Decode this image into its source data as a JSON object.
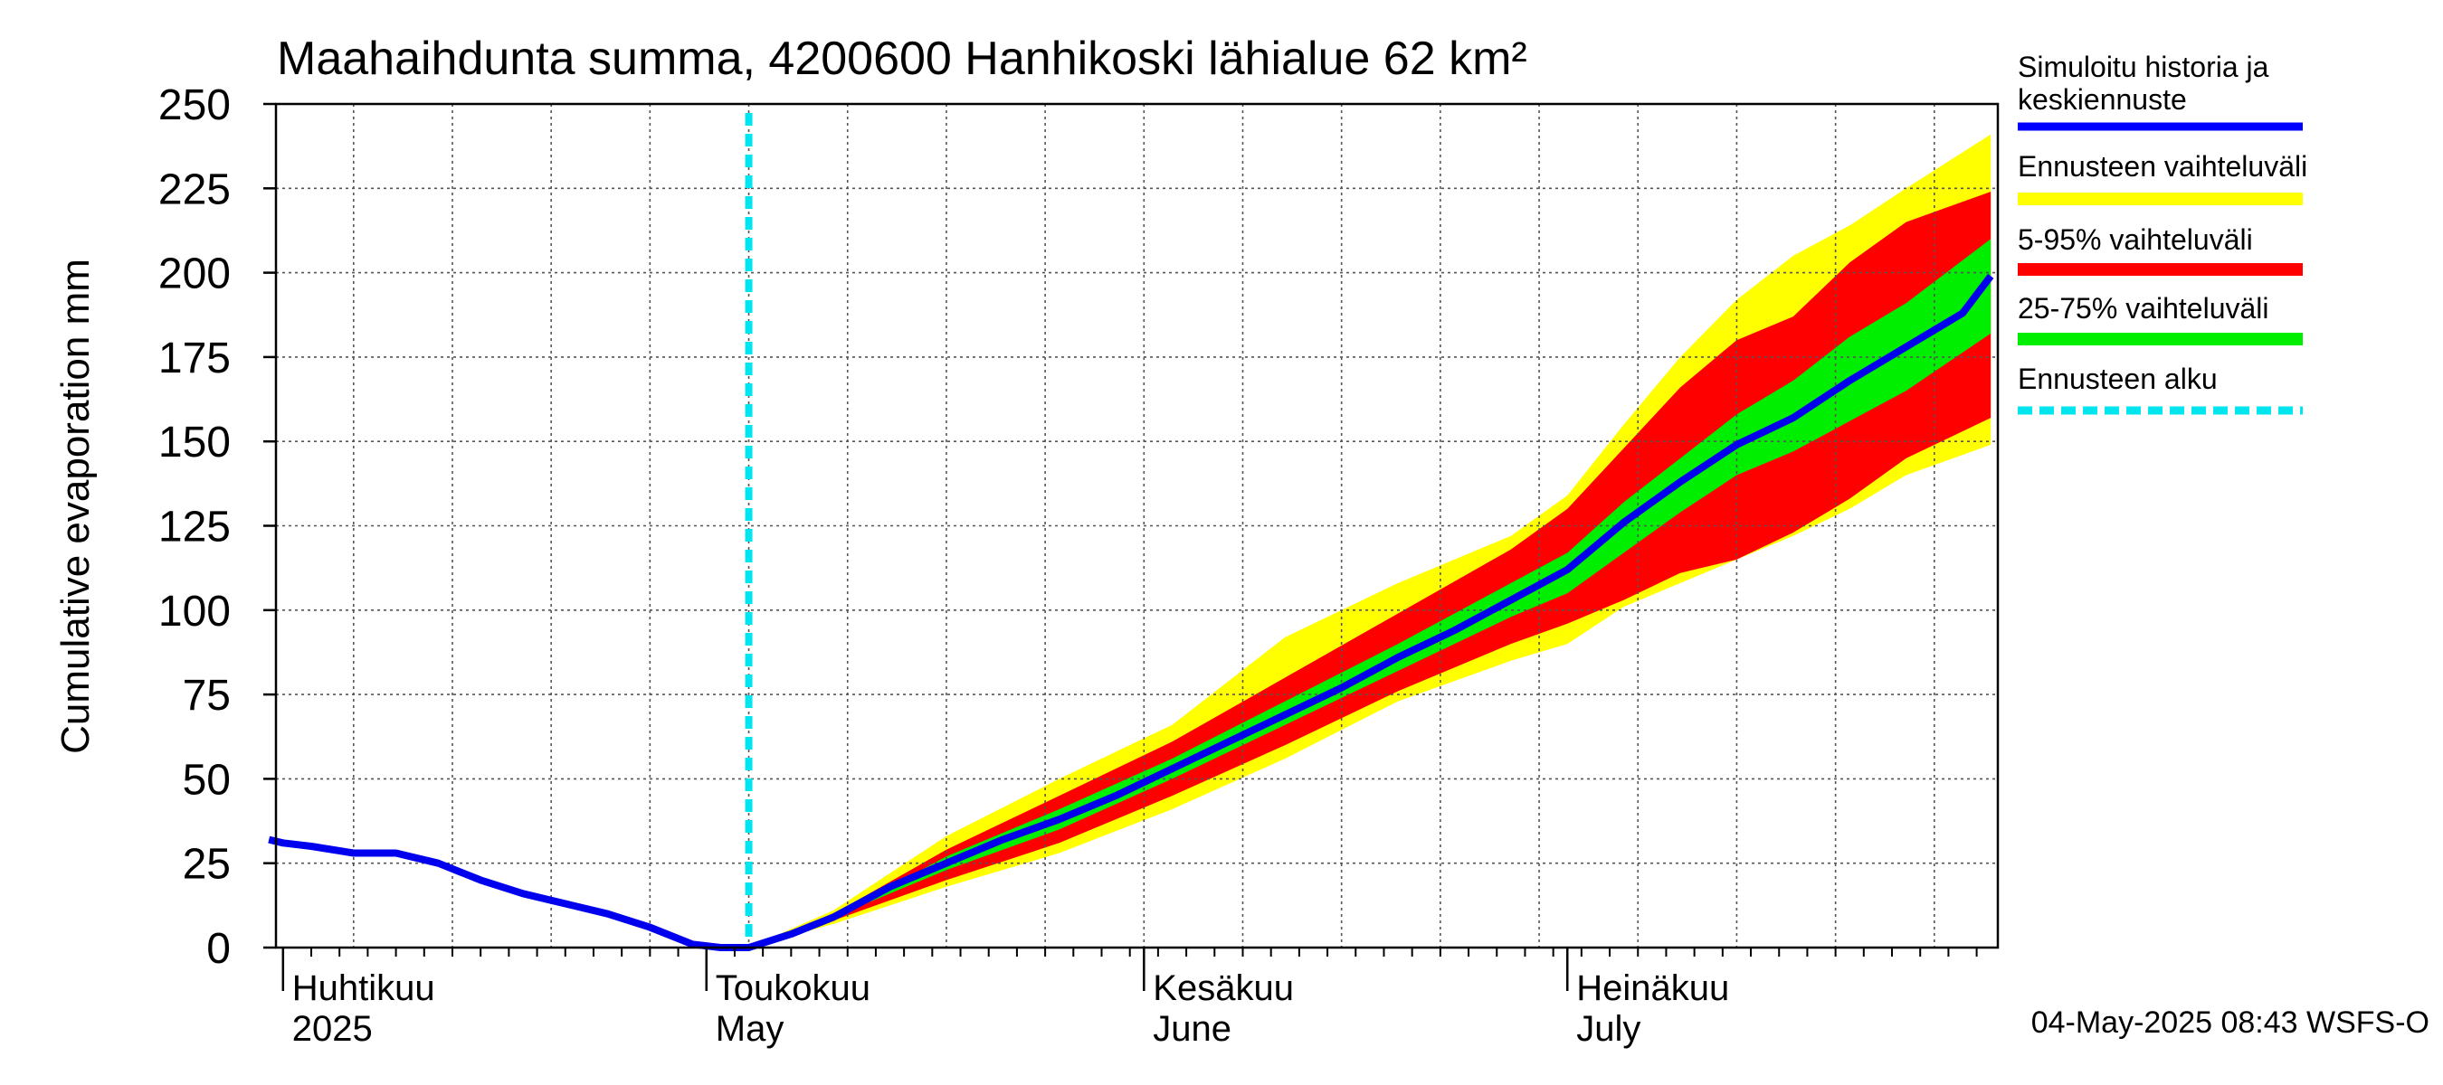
{
  "chart_data": {
    "type": "area",
    "title": "Maahaihdunta summa, 4200600 Hanhikoski lähialue 62 km²",
    "ylabel": "Cumulative evaporation   mm",
    "xlabel": "",
    "ylim": [
      0,
      250
    ],
    "xlim": [
      "2025-04-01",
      "2025-07-31"
    ],
    "yticks": [
      0,
      25,
      50,
      75,
      100,
      125,
      150,
      175,
      200,
      225,
      250
    ],
    "month_labels": [
      {
        "date": "2025-04-01",
        "fi": "Huhtikuu",
        "en": "2025"
      },
      {
        "date": "2025-05-01",
        "fi": "Toukokuu",
        "en": "May"
      },
      {
        "date": "2025-06-01",
        "fi": "Kesäkuu",
        "en": "June"
      },
      {
        "date": "2025-07-01",
        "fi": "Heinäkuu",
        "en": "July"
      }
    ],
    "grid": true,
    "legend_position": "right",
    "forecast_start": "2025-05-04",
    "footer": "04-May-2025 08:43 WSFS-O",
    "legend": [
      {
        "label": "Simuloitu historia ja keskiennuste",
        "color": "#0000ff",
        "style": "line"
      },
      {
        "label": "Ennusteen vaihteluväli",
        "color": "#ffff00",
        "style": "band"
      },
      {
        "label": "5-95% vaihteluväli",
        "color": "#ff0000",
        "style": "band"
      },
      {
        "label": "25-75% vaihteluväli",
        "color": "#00ee00",
        "style": "band"
      },
      {
        "label": "Ennusteen alku",
        "color": "#00e5ee",
        "style": "dashed"
      }
    ],
    "history": {
      "x": [
        "2025-03-31",
        "2025-04-01",
        "2025-04-03",
        "2025-04-06",
        "2025-04-09",
        "2025-04-12",
        "2025-04-15",
        "2025-04-18",
        "2025-04-21",
        "2025-04-24",
        "2025-04-27",
        "2025-04-30",
        "2025-05-02",
        "2025-05-04"
      ],
      "y": [
        32,
        31,
        30,
        28,
        28,
        25,
        20,
        16,
        13,
        10,
        6,
        1,
        0,
        0
      ]
    },
    "median": {
      "x": [
        "2025-05-04",
        "2025-05-07",
        "2025-05-10",
        "2025-05-14",
        "2025-05-18",
        "2025-05-22",
        "2025-05-26",
        "2025-05-30",
        "2025-06-03",
        "2025-06-07",
        "2025-06-11",
        "2025-06-15",
        "2025-06-19",
        "2025-06-23",
        "2025-06-27",
        "2025-07-01",
        "2025-07-05",
        "2025-07-09",
        "2025-07-13",
        "2025-07-17",
        "2025-07-21",
        "2025-07-25",
        "2025-07-29",
        "2025-07-31"
      ],
      "y": [
        0,
        4,
        9,
        18,
        25,
        32,
        38,
        45,
        53,
        61,
        69,
        77,
        86,
        94,
        103,
        112,
        126,
        138,
        149,
        157,
        168,
        178,
        188,
        199
      ]
    },
    "bands": {
      "p25_75": {
        "x": [
          "2025-05-04",
          "2025-05-10",
          "2025-05-18",
          "2025-05-26",
          "2025-06-03",
          "2025-06-11",
          "2025-06-19",
          "2025-06-27",
          "2025-07-01",
          "2025-07-05",
          "2025-07-09",
          "2025-07-13",
          "2025-07-17",
          "2025-07-21",
          "2025-07-25",
          "2025-07-31"
        ],
        "upper": [
          0,
          9,
          27,
          41,
          56,
          73,
          90,
          108,
          117,
          132,
          145,
          158,
          168,
          181,
          191,
          210
        ],
        "lower": [
          0,
          9,
          23,
          35,
          50,
          66,
          82,
          98,
          105,
          117,
          129,
          140,
          147,
          156,
          165,
          182
        ]
      },
      "p5_95": {
        "x": [
          "2025-05-04",
          "2025-05-10",
          "2025-05-18",
          "2025-05-26",
          "2025-06-03",
          "2025-06-11",
          "2025-06-19",
          "2025-06-27",
          "2025-07-01",
          "2025-07-05",
          "2025-07-09",
          "2025-07-13",
          "2025-07-17",
          "2025-07-21",
          "2025-07-25",
          "2025-07-31"
        ],
        "upper": [
          0,
          10,
          29,
          45,
          61,
          80,
          99,
          118,
          130,
          148,
          166,
          180,
          187,
          203,
          215,
          224
        ],
        "lower": [
          0,
          8,
          20,
          31,
          45,
          60,
          76,
          90,
          96,
          103,
          111,
          115,
          123,
          133,
          145,
          157
        ]
      },
      "range": {
        "x": [
          "2025-05-04",
          "2025-05-10",
          "2025-05-18",
          "2025-05-26",
          "2025-06-03",
          "2025-06-11",
          "2025-06-19",
          "2025-06-27",
          "2025-07-01",
          "2025-07-05",
          "2025-07-09",
          "2025-07-13",
          "2025-07-17",
          "2025-07-21",
          "2025-07-25",
          "2025-07-31"
        ],
        "upper": [
          0,
          11,
          33,
          50,
          66,
          92,
          108,
          122,
          134,
          155,
          175,
          192,
          205,
          214,
          225,
          241
        ],
        "lower": [
          0,
          7,
          18,
          28,
          41,
          56,
          73,
          85,
          90,
          101,
          108,
          115,
          122,
          130,
          140,
          149
        ]
      }
    }
  }
}
